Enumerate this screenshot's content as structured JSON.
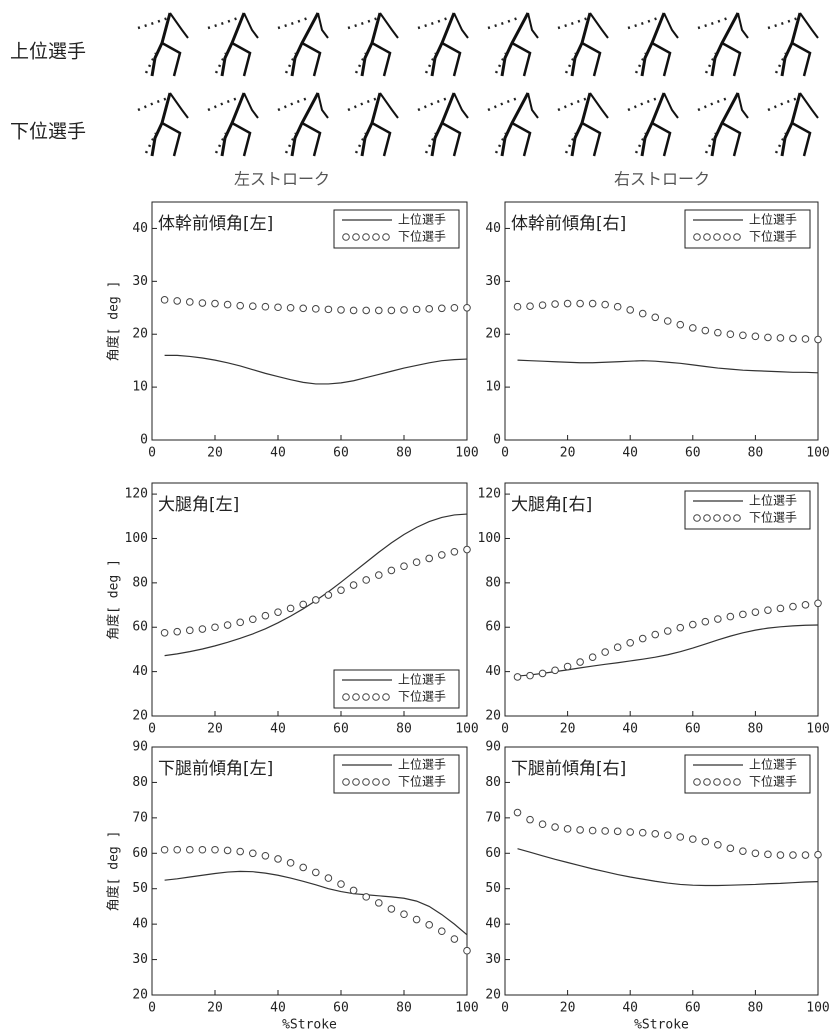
{
  "row_labels": [
    "上位選手",
    "下位選手"
  ],
  "column_labels": [
    "左ストローク",
    "右ストローク"
  ],
  "chart_data": [
    {
      "type": "line",
      "title": "体幹前傾角[左]",
      "ylabel": "角度[ deg ]",
      "x": [
        4,
        8,
        12,
        16,
        20,
        24,
        28,
        32,
        36,
        40,
        44,
        48,
        52,
        56,
        60,
        64,
        68,
        72,
        76,
        80,
        84,
        88,
        92,
        96,
        100
      ],
      "xlim": [
        0,
        100
      ],
      "xticks": [
        0,
        20,
        40,
        60,
        80,
        100
      ],
      "ylim": [
        0,
        45
      ],
      "yticks": [
        0,
        10,
        20,
        30,
        40
      ],
      "legend": "upper right",
      "series": [
        {
          "name": "上位選手",
          "marker": "line",
          "color": "#333333",
          "values": [
            16,
            16,
            15.8,
            15.5,
            15.1,
            14.6,
            14,
            13.3,
            12.6,
            12,
            11.4,
            10.9,
            10.6,
            10.6,
            10.8,
            11.2,
            11.8,
            12.4,
            13,
            13.6,
            14.1,
            14.6,
            15,
            15.2,
            15.3
          ]
        },
        {
          "name": "下位選手",
          "marker": "circle",
          "color": "#444444",
          "values": [
            26.5,
            26.3,
            26.1,
            25.9,
            25.8,
            25.6,
            25.4,
            25.3,
            25.2,
            25.1,
            25,
            24.9,
            24.8,
            24.7,
            24.6,
            24.5,
            24.5,
            24.5,
            24.5,
            24.6,
            24.7,
            24.8,
            24.9,
            25,
            25
          ]
        }
      ]
    },
    {
      "type": "line",
      "title": "体幹前傾角[右]",
      "x": [
        4,
        8,
        12,
        16,
        20,
        24,
        28,
        32,
        36,
        40,
        44,
        48,
        52,
        56,
        60,
        64,
        68,
        72,
        76,
        80,
        84,
        88,
        92,
        96,
        100
      ],
      "xlim": [
        0,
        100
      ],
      "xticks": [
        0,
        20,
        40,
        60,
        80,
        100
      ],
      "ylim": [
        0,
        45
      ],
      "yticks": [
        0,
        10,
        20,
        30,
        40
      ],
      "legend": "upper right",
      "series": [
        {
          "name": "上位選手",
          "marker": "line",
          "color": "#333333",
          "values": [
            15.1,
            15,
            14.9,
            14.8,
            14.7,
            14.6,
            14.6,
            14.7,
            14.8,
            14.9,
            15,
            14.9,
            14.7,
            14.5,
            14.2,
            13.9,
            13.6,
            13.4,
            13.2,
            13.1,
            13,
            12.9,
            12.8,
            12.8,
            12.7
          ]
        },
        {
          "name": "下位選手",
          "marker": "circle",
          "color": "#444444",
          "values": [
            25.2,
            25.3,
            25.5,
            25.7,
            25.8,
            25.8,
            25.8,
            25.6,
            25.2,
            24.6,
            23.9,
            23.2,
            22.5,
            21.8,
            21.2,
            20.7,
            20.3,
            20,
            19.8,
            19.6,
            19.4,
            19.3,
            19.2,
            19.1,
            19
          ]
        }
      ]
    },
    {
      "type": "line",
      "title": "大腿角[左]",
      "ylabel": "角度[ deg ]",
      "x": [
        4,
        8,
        12,
        16,
        20,
        24,
        28,
        32,
        36,
        40,
        44,
        48,
        52,
        56,
        60,
        64,
        68,
        72,
        76,
        80,
        84,
        88,
        92,
        96,
        100
      ],
      "xlim": [
        0,
        100
      ],
      "xticks": [
        0,
        20,
        40,
        60,
        80,
        100
      ],
      "ylim": [
        20,
        125
      ],
      "yticks": [
        20,
        40,
        60,
        80,
        100,
        120
      ],
      "legend": "lower right",
      "series": [
        {
          "name": "上位選手",
          "marker": "line",
          "color": "#333333",
          "values": [
            47.2,
            48,
            49,
            50.2,
            51.6,
            53.2,
            55,
            57,
            59.3,
            62,
            65,
            68.3,
            72,
            76,
            80.3,
            84.8,
            89.3,
            93.8,
            98,
            101.8,
            105,
            107.6,
            109.5,
            110.6,
            111
          ]
        },
        {
          "name": "下位選手",
          "marker": "circle",
          "color": "#444444",
          "values": [
            57.5,
            58,
            58.6,
            59.2,
            60,
            61,
            62.2,
            63.6,
            65.2,
            66.8,
            68.5,
            70.3,
            72.3,
            74.5,
            76.7,
            79,
            81.3,
            83.5,
            85.6,
            87.5,
            89.3,
            91,
            92.6,
            94,
            95
          ]
        }
      ]
    },
    {
      "type": "line",
      "title": "大腿角[右]",
      "x": [
        4,
        8,
        12,
        16,
        20,
        24,
        28,
        32,
        36,
        40,
        44,
        48,
        52,
        56,
        60,
        64,
        68,
        72,
        76,
        80,
        84,
        88,
        92,
        96,
        100
      ],
      "xlim": [
        0,
        100
      ],
      "xticks": [
        0,
        20,
        40,
        60,
        80,
        100
      ],
      "ylim": [
        20,
        125
      ],
      "yticks": [
        20,
        40,
        60,
        80,
        100,
        120
      ],
      "legend": "upper right",
      "series": [
        {
          "name": "上位選手",
          "marker": "line",
          "color": "#333333",
          "values": [
            38,
            38.5,
            39.2,
            40,
            40.8,
            41.7,
            42.5,
            43.3,
            44,
            44.8,
            45.6,
            46.5,
            47.6,
            49,
            50.6,
            52.4,
            54.3,
            56,
            57.5,
            58.7,
            59.6,
            60.2,
            60.6,
            60.9,
            61
          ]
        },
        {
          "name": "下位選手",
          "marker": "circle",
          "color": "#444444",
          "values": [
            37.6,
            38.2,
            39.2,
            40.6,
            42.3,
            44.3,
            46.5,
            48.8,
            51,
            53,
            54.9,
            56.7,
            58.3,
            59.8,
            61.2,
            62.5,
            63.7,
            64.8,
            65.8,
            66.8,
            67.7,
            68.5,
            69.3,
            70.1,
            70.8
          ]
        }
      ]
    },
    {
      "type": "line",
      "title": "下腿前傾角[左]",
      "ylabel": "角度[ deg ]",
      "xlabel": "%Stroke",
      "x": [
        4,
        8,
        12,
        16,
        20,
        24,
        28,
        32,
        36,
        40,
        44,
        48,
        52,
        56,
        60,
        64,
        68,
        72,
        76,
        80,
        84,
        88,
        92,
        96,
        100
      ],
      "xlim": [
        0,
        100
      ],
      "xticks": [
        0,
        20,
        40,
        60,
        80,
        100
      ],
      "ylim": [
        20,
        90
      ],
      "yticks": [
        20,
        30,
        40,
        50,
        60,
        70,
        80,
        90
      ],
      "legend": "upper right",
      "series": [
        {
          "name": "上位選手",
          "marker": "line",
          "color": "#333333",
          "values": [
            52.4,
            52.8,
            53.3,
            53.8,
            54.3,
            54.7,
            54.9,
            54.8,
            54.4,
            53.8,
            53,
            52.1,
            51.1,
            50,
            49.2,
            48.6,
            48.3,
            48,
            47.7,
            47.3,
            46.5,
            45,
            42.7,
            40,
            37
          ]
        },
        {
          "name": "下位選手",
          "marker": "circle",
          "color": "#444444",
          "values": [
            61,
            61,
            61,
            61,
            61,
            60.8,
            60.5,
            60,
            59.3,
            58.4,
            57.3,
            56,
            54.6,
            53,
            51.3,
            49.5,
            47.7,
            46,
            44.3,
            42.8,
            41.3,
            39.8,
            38,
            35.8,
            32.5
          ]
        }
      ]
    },
    {
      "type": "line",
      "title": "下腿前傾角[右]",
      "xlabel": "%Stroke",
      "x": [
        4,
        8,
        12,
        16,
        20,
        24,
        28,
        32,
        36,
        40,
        44,
        48,
        52,
        56,
        60,
        64,
        68,
        72,
        76,
        80,
        84,
        88,
        92,
        96,
        100
      ],
      "xlim": [
        0,
        100
      ],
      "xticks": [
        0,
        20,
        40,
        60,
        80,
        100
      ],
      "ylim": [
        20,
        90
      ],
      "yticks": [
        20,
        30,
        40,
        50,
        60,
        70,
        80,
        90
      ],
      "legend": "upper right",
      "series": [
        {
          "name": "上位選手",
          "marker": "line",
          "color": "#333333",
          "values": [
            61.3,
            60.3,
            59.3,
            58.3,
            57.4,
            56.5,
            55.6,
            54.8,
            54,
            53.3,
            52.7,
            52.1,
            51.6,
            51.2,
            51,
            50.9,
            50.9,
            51,
            51.1,
            51.2,
            51.4,
            51.5,
            51.7,
            51.9,
            52
          ]
        },
        {
          "name": "下位選手",
          "marker": "circle",
          "color": "#444444",
          "values": [
            71.5,
            69.5,
            68.2,
            67.4,
            66.9,
            66.6,
            66.4,
            66.3,
            66.2,
            66,
            65.8,
            65.5,
            65.1,
            64.6,
            64,
            63.3,
            62.4,
            61.4,
            60.6,
            60,
            59.7,
            59.5,
            59.5,
            59.5,
            59.6
          ]
        }
      ]
    }
  ]
}
